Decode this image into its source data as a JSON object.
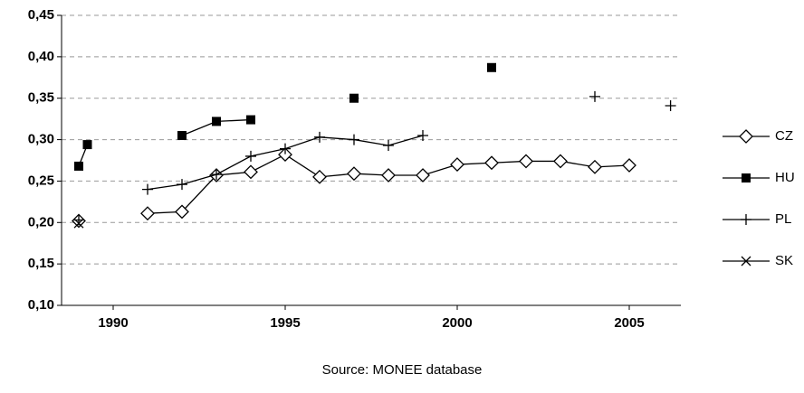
{
  "chart_data": {
    "type": "line",
    "source": "Source: MONEE database",
    "xlim": [
      1988.5,
      2006.5
    ],
    "xticks": [
      1990,
      1995,
      2000,
      2005
    ],
    "ylim": [
      0.1,
      0.45
    ],
    "yticks": [
      {
        "value": 0.1,
        "label": "0,10"
      },
      {
        "value": 0.15,
        "label": "0,15"
      },
      {
        "value": 0.2,
        "label": "0,20"
      },
      {
        "value": 0.25,
        "label": "0,25"
      },
      {
        "value": 0.3,
        "label": "0,30"
      },
      {
        "value": 0.35,
        "label": "0,35"
      },
      {
        "value": 0.4,
        "label": "0,40"
      },
      {
        "value": 0.45,
        "label": "0,45"
      }
    ],
    "grid": true,
    "legend": "right",
    "series": [
      {
        "name": "CZ",
        "color": "#000000",
        "marker": "diamond",
        "x": [
          1989,
          1990,
          1991,
          1992,
          1993,
          1994,
          1995,
          1996,
          1997,
          1998,
          1999,
          2000,
          2001,
          2002,
          2003,
          2004,
          2005
        ],
        "values": [
          0.202,
          null,
          0.211,
          0.213,
          0.257,
          0.261,
          0.282,
          0.255,
          0.259,
          0.257,
          0.257,
          0.27,
          0.272,
          0.274,
          0.274,
          0.267,
          0.269
        ]
      },
      {
        "name": "HU",
        "color": "#000000",
        "marker": "square",
        "x": [
          1989,
          1989.25,
          1991,
          1992,
          1993,
          1994,
          1996,
          1997,
          1999,
          2001
        ],
        "values": [
          0.268,
          0.294,
          null,
          0.305,
          0.322,
          0.324,
          null,
          0.35,
          null,
          0.387
        ]
      },
      {
        "name": "PL",
        "color": "#000000",
        "marker": "plus",
        "x": [
          1989,
          1990,
          1991,
          1992,
          1993,
          1994,
          1995,
          1996,
          1997,
          1998,
          1999,
          2002,
          2004,
          2005,
          2006.2
        ],
        "values": [
          0.203,
          null,
          0.24,
          0.246,
          0.258,
          0.28,
          0.289,
          0.303,
          0.3,
          0.293,
          0.305,
          null,
          0.352,
          null,
          0.341
        ]
      },
      {
        "name": "SK",
        "color": "#000000",
        "marker": "x",
        "x": [
          1989
        ],
        "values": [
          0.199
        ]
      }
    ]
  }
}
